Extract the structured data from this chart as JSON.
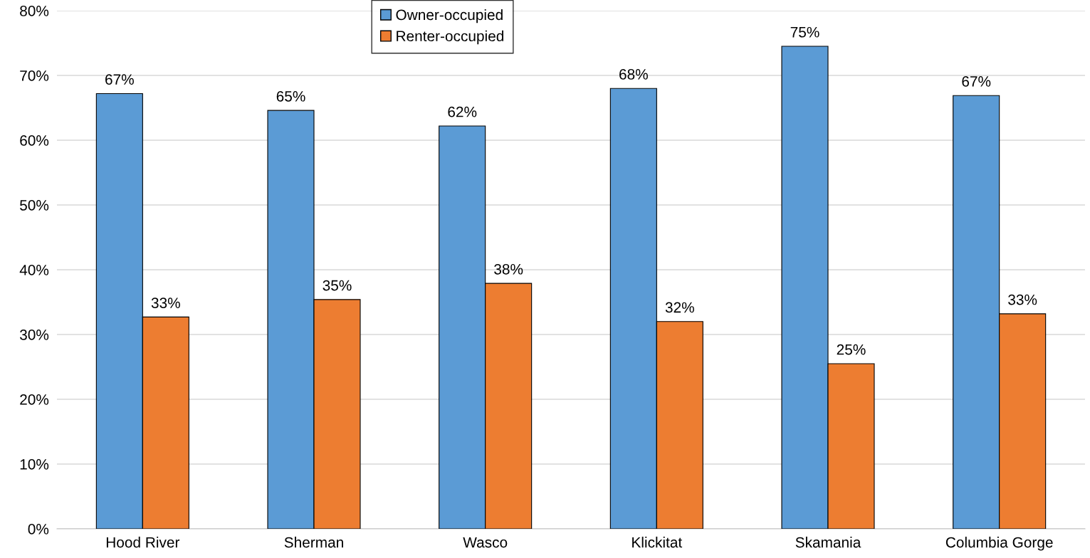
{
  "chart_data": {
    "type": "bar",
    "categories": [
      "Hood River",
      "Sherman",
      "Wasco",
      "Klickitat",
      "Skamania",
      "Columbia Gorge"
    ],
    "series": [
      {
        "name": "Owner-occupied",
        "color": "#5b9bd5",
        "values": [
          67.2,
          64.6,
          62.2,
          68.0,
          74.5,
          66.9
        ],
        "value_labels": [
          "67%",
          "65%",
          "62%",
          "68%",
          "75%",
          "67%"
        ]
      },
      {
        "name": "Renter-occupied",
        "color": "#ed7d31",
        "values": [
          32.7,
          35.4,
          37.9,
          32.0,
          25.5,
          33.2
        ],
        "value_labels": [
          "33%",
          "35%",
          "38%",
          "32%",
          "25%",
          "33%"
        ]
      }
    ],
    "ylim": [
      0,
      80
    ],
    "yticks": [
      {
        "value": 0,
        "label": "0%"
      },
      {
        "value": 10,
        "label": "10%"
      },
      {
        "value": 20,
        "label": "20%"
      },
      {
        "value": 30,
        "label": "30%"
      },
      {
        "value": 40,
        "label": "40%"
      },
      {
        "value": 50,
        "label": "50%"
      },
      {
        "value": 60,
        "label": "60%"
      },
      {
        "value": 70,
        "label": "70%"
      },
      {
        "value": 80,
        "label": "80%"
      }
    ],
    "grid": "y",
    "legend": "top"
  }
}
